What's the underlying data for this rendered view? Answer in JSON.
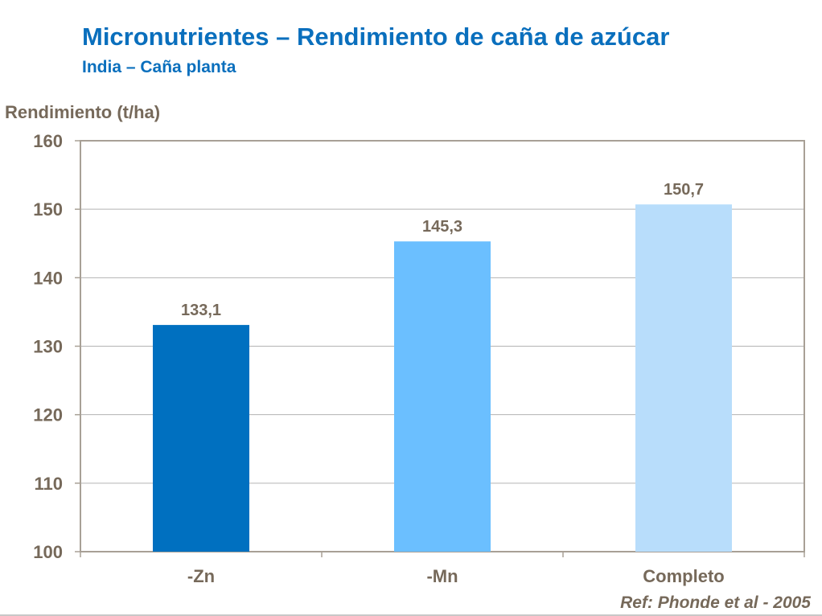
{
  "chart_data": {
    "type": "bar",
    "title": "Micronutrientes – Rendimiento de caña de azúcar",
    "subtitle": "India – Caña planta",
    "ylabel": "Rendimiento (t/ha)",
    "xlabel": "",
    "categories": [
      "-Zn",
      "-Mn",
      "Completo"
    ],
    "values": [
      133.1,
      145.3,
      150.7
    ],
    "data_labels": [
      "133,1",
      "145,3",
      "150,7"
    ],
    "bar_colors": [
      "#0070c0",
      "#6bbfff",
      "#b8ddfb"
    ],
    "ylim": [
      100,
      160
    ],
    "yticks": [
      100,
      110,
      120,
      130,
      140,
      150,
      160
    ],
    "grid": true,
    "note": "Ref: Phonde et al - 2005"
  },
  "colors": {
    "title": "#0a6fbd",
    "text": "#76695a",
    "grid": "#b3b3b3",
    "axis": "#a8a096"
  }
}
